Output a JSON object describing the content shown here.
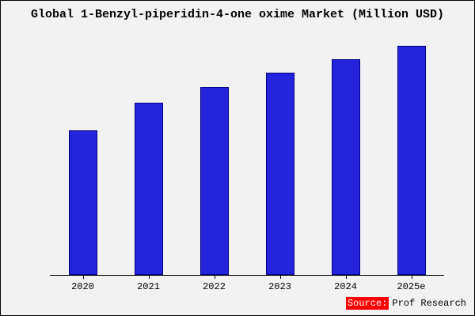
{
  "chart_data": {
    "type": "bar",
    "title": "Global 1-Benzyl-piperidin-4-one oxime Market (Million USD)",
    "categories": [
      "2020",
      "2021",
      "2022",
      "2023",
      "2024",
      "2025e"
    ],
    "values": [
      63,
      75,
      82,
      88,
      94,
      100
    ],
    "xlabel": "",
    "ylabel": "",
    "ylim": [
      0,
      105
    ],
    "grid": false,
    "legend": false,
    "bar_color": "#2424dd",
    "bar_edge_color": "#000080"
  },
  "source": {
    "label": "Source:",
    "text": "Prof Research"
  },
  "colors": {
    "background": "#f2f2f2",
    "frame_border": "#000000",
    "source_highlight": "#ff0000"
  }
}
